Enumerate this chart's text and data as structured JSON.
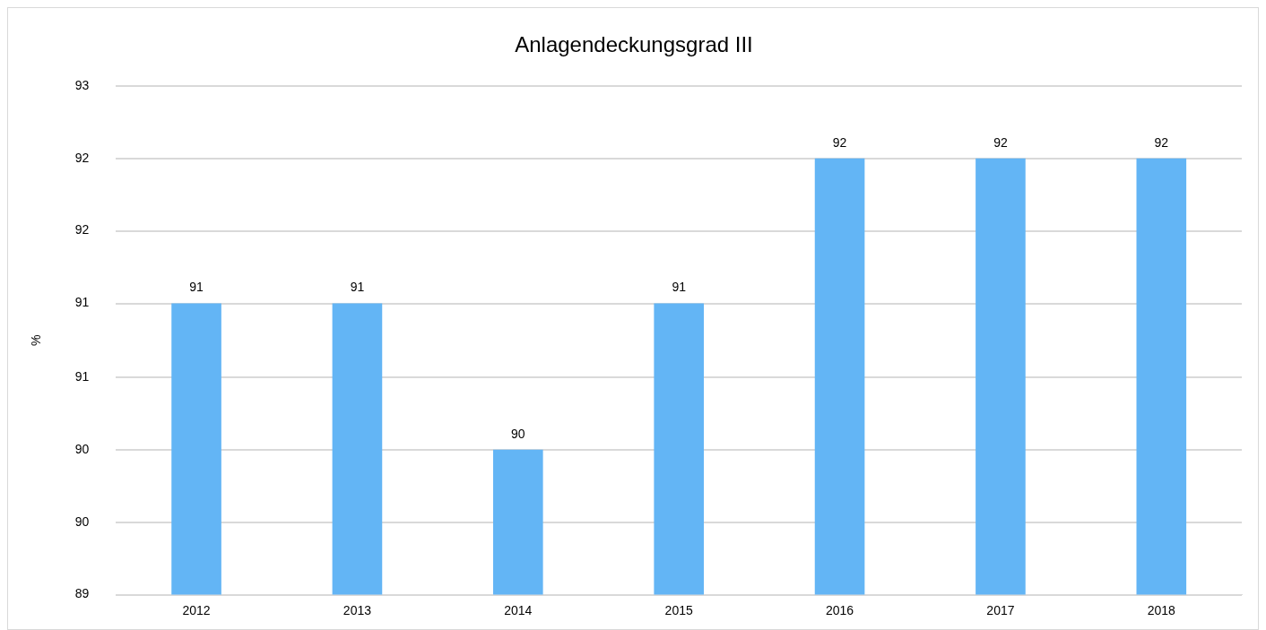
{
  "chart_data": {
    "type": "bar",
    "title": "Anlagendeckungsgrad III",
    "ylabel": "%",
    "categories": [
      "2012",
      "2013",
      "2014",
      "2015",
      "2016",
      "2017",
      "2018"
    ],
    "values": [
      91.29,
      91.29,
      90.14,
      91.29,
      92.43,
      92.43,
      92.43
    ],
    "value_labels": [
      "91",
      "91",
      "90",
      "91",
      "92",
      "92",
      "92"
    ],
    "color": "#63b5f5",
    "ylim": [
      89,
      93
    ],
    "yticks": [
      89,
      {
        "value": 89.57,
        "label": "90"
      },
      {
        "value": 90.14,
        "label": "90"
      },
      {
        "value": 90.71,
        "label": "91"
      },
      {
        "value": 91.29,
        "label": "91"
      },
      {
        "value": 91.86,
        "label": "92"
      },
      {
        "value": 92.43,
        "label": "92"
      },
      93
    ],
    "grid": "y",
    "legend": false
  }
}
